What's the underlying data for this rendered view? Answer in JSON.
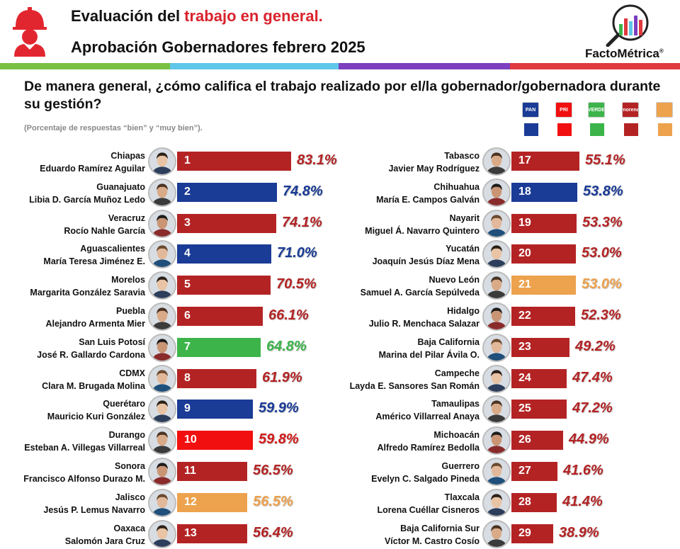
{
  "header": {
    "title_prefix": "Evaluación del ",
    "title_highlight": "trabajo en general.",
    "subtitle": "Aprobación Gobernadores febrero 2025",
    "brand": "FactoMétrica",
    "brand_mark": "®"
  },
  "question": "De manera general, ¿cómo califica el trabajo realizado por el/la gobernador/gobernadora durante su gestión?",
  "note": "(Porcentaje de respuestas “bien” y “muy bien”).",
  "colors": {
    "PAN": "#1a3b96",
    "PRI": "#f20f0f",
    "PVEM": "#3cb44a",
    "MORENA": "#b42324",
    "MC": "#eda24d",
    "stripe_green": "#7ac143",
    "stripe_cyan": "#5fc7e8",
    "stripe_purple": "#7b3fbf",
    "stripe_red": "#e0393e"
  },
  "parties": [
    {
      "code": "PAN",
      "logo_text": "PAN",
      "color": "#1a3b96"
    },
    {
      "code": "PRI",
      "logo_text": "PRI",
      "color": "#f20f0f"
    },
    {
      "code": "PVEM",
      "logo_text": "VERDE",
      "color": "#3cb44a"
    },
    {
      "code": "MORENA",
      "logo_text": "morena",
      "color": "#b42324"
    },
    {
      "code": "MC",
      "logo_text": "",
      "color": "#eda24d"
    }
  ],
  "chart_data": {
    "type": "bar",
    "orientation": "horizontal",
    "unit": "%",
    "xlim": [
      0,
      100
    ],
    "legend": "top-right",
    "entries": [
      {
        "rank": 1,
        "state": "Chiapas",
        "governor": "Eduardo Ramírez Aguilar",
        "value": 83.1,
        "label": "83.1%",
        "party": "MORENA"
      },
      {
        "rank": 2,
        "state": "Guanajuato",
        "governor": "Libia D. García Muñoz Ledo",
        "value": 74.8,
        "label": "74.8%",
        "party": "PAN"
      },
      {
        "rank": 3,
        "state": "Veracruz",
        "governor": "Rocío Nahle García",
        "value": 74.1,
        "label": "74.1%",
        "party": "MORENA"
      },
      {
        "rank": 4,
        "state": "Aguascalientes",
        "governor": "María Teresa Jiménez E.",
        "value": 71.0,
        "label": "71.0%",
        "party": "PAN"
      },
      {
        "rank": 5,
        "state": "Morelos",
        "governor": "Margarita González Saravia",
        "value": 70.5,
        "label": "70.5%",
        "party": "MORENA"
      },
      {
        "rank": 6,
        "state": "Puebla",
        "governor": "Alejandro Armenta Mier",
        "value": 66.1,
        "label": "66.1%",
        "party": "MORENA"
      },
      {
        "rank": 7,
        "state": "San Luis Potosí",
        "governor": "José R. Gallardo Cardona",
        "value": 64.8,
        "label": "64.8%",
        "party": "PVEM"
      },
      {
        "rank": 8,
        "state": "CDMX",
        "governor": "Clara M. Brugada Molina",
        "value": 61.9,
        "label": "61.9%",
        "party": "MORENA"
      },
      {
        "rank": 9,
        "state": "Querétaro",
        "governor": "Mauricio Kuri González",
        "value": 59.9,
        "label": "59.9%",
        "party": "PAN"
      },
      {
        "rank": 10,
        "state": "Durango",
        "governor": "Esteban A. Villegas Villarreal",
        "value": 59.8,
        "label": "59.8%",
        "party": "PRI"
      },
      {
        "rank": 11,
        "state": "Sonora",
        "governor": "Francisco Alfonso Durazo M.",
        "value": 56.5,
        "label": "56.5%",
        "party": "MORENA"
      },
      {
        "rank": 12,
        "state": "Jalisco",
        "governor": "Jesús P. Lemus Navarro",
        "value": 56.5,
        "label": "56.5%",
        "party": "MC"
      },
      {
        "rank": 13,
        "state": "Oaxaca",
        "governor": "Salomón Jara Cruz",
        "value": 56.4,
        "label": "56.4%",
        "party": "MORENA"
      },
      {
        "rank": 17,
        "state": "Tabasco",
        "governor": "Javier May Rodríguez",
        "value": 55.1,
        "label": "55.1%",
        "party": "MORENA"
      },
      {
        "rank": 18,
        "state": "Chihuahua",
        "governor": "María E. Campos Galván",
        "value": 53.8,
        "label": "53.8%",
        "party": "PAN"
      },
      {
        "rank": 19,
        "state": "Nayarit",
        "governor": "Miguel Á. Navarro Quintero",
        "value": 53.3,
        "label": "53.3%",
        "party": "MORENA"
      },
      {
        "rank": 20,
        "state": "Yucatán",
        "governor": "Joaquín Jesús Díaz Mena",
        "value": 53.0,
        "label": "53.0%",
        "party": "MORENA"
      },
      {
        "rank": 21,
        "state": "Nuevo León",
        "governor": "Samuel A. García Sepúlveda",
        "value": 53.0,
        "label": "53.0%",
        "party": "MC"
      },
      {
        "rank": 22,
        "state": "Hidalgo",
        "governor": "Julio R. Menchaca Salazar",
        "value": 52.3,
        "label": "52.3%",
        "party": "MORENA"
      },
      {
        "rank": 23,
        "state": "Baja California",
        "governor": "Marina del Pilar Ávila O.",
        "value": 49.2,
        "label": "49.2%",
        "party": "MORENA"
      },
      {
        "rank": 24,
        "state": "Campeche",
        "governor": "Layda E. Sansores San Román",
        "value": 47.4,
        "label": "47.4%",
        "party": "MORENA"
      },
      {
        "rank": 25,
        "state": "Tamaulipas",
        "governor": "Américo Villarreal Anaya",
        "value": 47.2,
        "label": "47.2%",
        "party": "MORENA"
      },
      {
        "rank": 26,
        "state": "Michoacán",
        "governor": "Alfredo Ramírez Bedolla",
        "value": 44.9,
        "label": "44.9%",
        "party": "MORENA"
      },
      {
        "rank": 27,
        "state": "Guerrero",
        "governor": "Evelyn C. Salgado Pineda",
        "value": 41.6,
        "label": "41.6%",
        "party": "MORENA"
      },
      {
        "rank": 28,
        "state": "Tlaxcala",
        "governor": "Lorena Cuéllar Cisneros",
        "value": 41.4,
        "label": "41.4%",
        "party": "MORENA"
      },
      {
        "rank": 29,
        "state": "Baja California Sur",
        "governor": "Víctor M. Castro Cosío",
        "value": 38.9,
        "label": "38.9%",
        "party": "MORENA"
      }
    ]
  }
}
